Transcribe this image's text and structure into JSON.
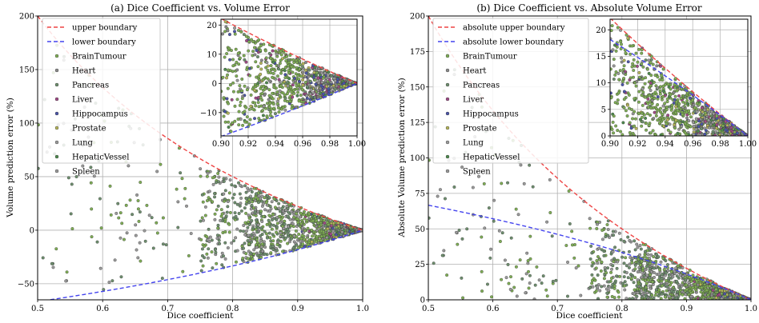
{
  "chart_data": [
    {
      "type": "scatter",
      "title": "(a) Dice Coefficient vs. Volume Error",
      "xlabel": "Dice coefficient",
      "ylabel": "Volume prediction error (%)",
      "xlim": [
        0.5,
        1.0
      ],
      "ylim": [
        -65,
        200
      ],
      "xticks": [
        0.5,
        0.6,
        0.7,
        0.8,
        0.9,
        1.0
      ],
      "xtick_labels": [
        "0.5",
        "0.6",
        "0.7",
        "0.8",
        "0.9",
        "1.0"
      ],
      "yticks": [
        -50,
        0,
        50,
        100,
        150,
        200
      ],
      "ytick_labels": [
        "−50",
        "0",
        "50",
        "100",
        "150",
        "200"
      ],
      "grid": true,
      "legend_position": "top-left",
      "boundary_lines": [
        {
          "name": "upper boundary",
          "color": "#ee4444",
          "formula": "200(1-d)/d"
        },
        {
          "name": "lower boundary",
          "color": "#4444ee",
          "formula": "-200(1-d)/(2-d)"
        }
      ],
      "series": [
        {
          "name": "BrainTumour",
          "color": "#7fae55"
        },
        {
          "name": "Heart",
          "color": "#8a8a8a"
        },
        {
          "name": "Pancreas",
          "color": "#6e8f6e"
        },
        {
          "name": "Liver",
          "color": "#a04a86"
        },
        {
          "name": "Hippocampus",
          "color": "#4b55a8"
        },
        {
          "name": "Prostate",
          "color": "#b5b55a"
        },
        {
          "name": "Lung",
          "color": "#9a9a9a"
        },
        {
          "name": "HepaticVessel",
          "color": "#4e8a4e"
        },
        {
          "name": "Spleen",
          "color": "#999999"
        }
      ],
      "inset": {
        "xlim": [
          0.9,
          1.0
        ],
        "ylim": [
          -18,
          22
        ],
        "xticks": [
          0.9,
          0.92,
          0.94,
          0.96,
          0.98,
          1.0
        ],
        "xtick_labels": [
          "0.90",
          "0.92",
          "0.94",
          "0.96",
          "0.98",
          "1.00"
        ],
        "yticks": [
          -10,
          0,
          10,
          20
        ],
        "ytick_labels": [
          "−10",
          "0",
          "10",
          "20"
        ]
      }
    },
    {
      "type": "scatter",
      "title": "(b) Dice Coefficient vs. Absolute Volume Error",
      "xlabel": "Dice coefficient",
      "ylabel": "Absolute Volume prediction error (%)",
      "xlim": [
        0.5,
        1.0
      ],
      "ylim": [
        0,
        200
      ],
      "xticks": [
        0.5,
        0.6,
        0.7,
        0.8,
        0.9,
        1.0
      ],
      "xtick_labels": [
        "0.5",
        "0.6",
        "0.7",
        "0.8",
        "0.9",
        "1.0"
      ],
      "yticks": [
        0,
        25,
        50,
        75,
        100,
        125,
        150,
        175,
        200
      ],
      "ytick_labels": [
        "0",
        "25",
        "50",
        "75",
        "100",
        "125",
        "150",
        "175",
        "200"
      ],
      "grid": true,
      "legend_position": "top-left",
      "boundary_lines": [
        {
          "name": "absolute upper boundary",
          "color": "#ee4444",
          "formula": "200(1-d)/d"
        },
        {
          "name": "absolute lower boundary",
          "color": "#4444ee",
          "formula": "200(1-d)/(2-d)"
        }
      ],
      "series": [
        {
          "name": "BrainTumour",
          "color": "#7fae55"
        },
        {
          "name": "Heart",
          "color": "#8a8a8a"
        },
        {
          "name": "Pancreas",
          "color": "#6e8f6e"
        },
        {
          "name": "Liver",
          "color": "#a04a86"
        },
        {
          "name": "Hippocampus",
          "color": "#4b55a8"
        },
        {
          "name": "Prostate",
          "color": "#b5b55a"
        },
        {
          "name": "Lung",
          "color": "#9a9a9a"
        },
        {
          "name": "HepaticVessel",
          "color": "#4e8a4e"
        },
        {
          "name": "Spleen",
          "color": "#999999"
        }
      ],
      "inset": {
        "xlim": [
          0.9,
          1.0
        ],
        "ylim": [
          0,
          22
        ],
        "xticks": [
          0.9,
          0.92,
          0.94,
          0.96,
          0.98,
          1.0
        ],
        "xtick_labels": [
          "0.90",
          "0.92",
          "0.94",
          "0.96",
          "0.98",
          "1.00"
        ],
        "yticks": [
          0,
          5,
          10,
          15,
          20
        ],
        "ytick_labels": [
          "0",
          "5",
          "10",
          "15",
          "20"
        ]
      }
    }
  ]
}
